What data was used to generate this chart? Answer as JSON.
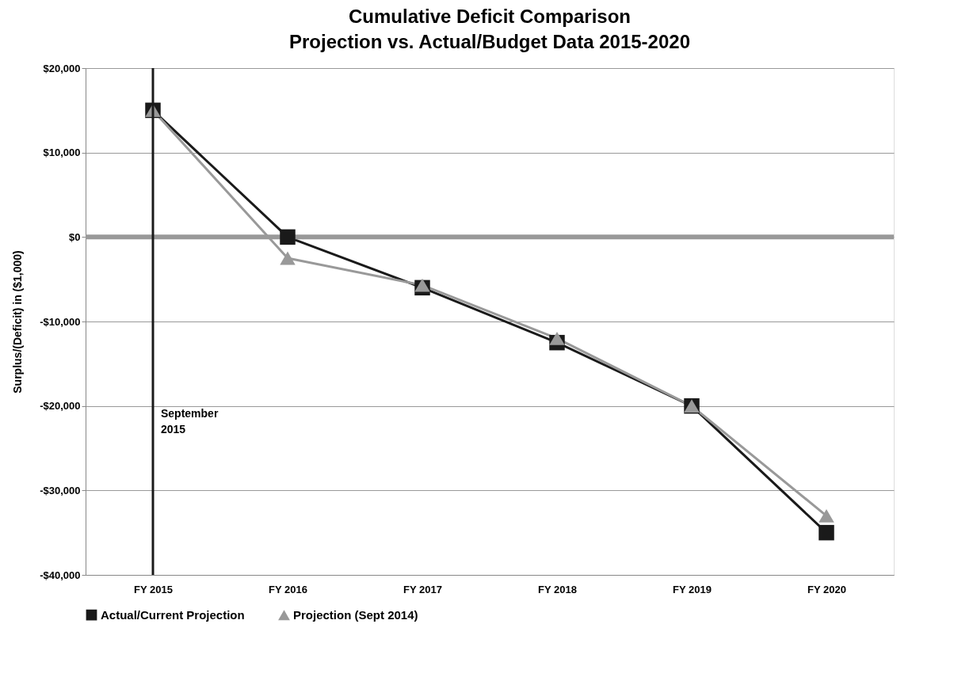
{
  "chart_data": {
    "type": "line",
    "title": "Cumulative Deficit Comparison",
    "subtitle": "Projection vs. Actual/Budget Data 2015-2020",
    "ylabel": "Surplus/(Deficit)  in ($1,000)",
    "categories": [
      "FY 2015",
      "FY 2016",
      "FY 2017",
      "FY 2018",
      "FY 2019",
      "FY 2020"
    ],
    "series": [
      {
        "name": "Actual/Current Projection",
        "color": "#1a1a1a",
        "marker": "square",
        "values": [
          15000,
          0,
          -6000,
          -12500,
          -20000,
          -35000
        ]
      },
      {
        "name": "Projection (Sept 2014)",
        "color": "#999999",
        "marker": "triangle",
        "values": [
          15000,
          -2500,
          -5700,
          -12000,
          -20000,
          -33000
        ]
      }
    ],
    "ylim": [
      -40000,
      20000
    ],
    "yticks": [
      {
        "value": -40000,
        "label": "-$40,000"
      },
      {
        "value": -30000,
        "label": "-$30,000"
      },
      {
        "value": -20000,
        "label": "-$20,000"
      },
      {
        "value": -10000,
        "label": "-$10,000"
      },
      {
        "value": 0,
        "label": "$0"
      },
      {
        "value": 10000,
        "label": "$10,000"
      },
      {
        "value": 20000,
        "label": "$20,000"
      }
    ],
    "ref_lines": [
      {
        "axis": "y",
        "value": 0,
        "color": "#999999"
      },
      {
        "axis": "x",
        "value": "FY 2015",
        "label": "September 2015",
        "color": "#1a1a1a"
      }
    ],
    "grid": "y",
    "legend": "bottom",
    "line_style": "solid"
  }
}
